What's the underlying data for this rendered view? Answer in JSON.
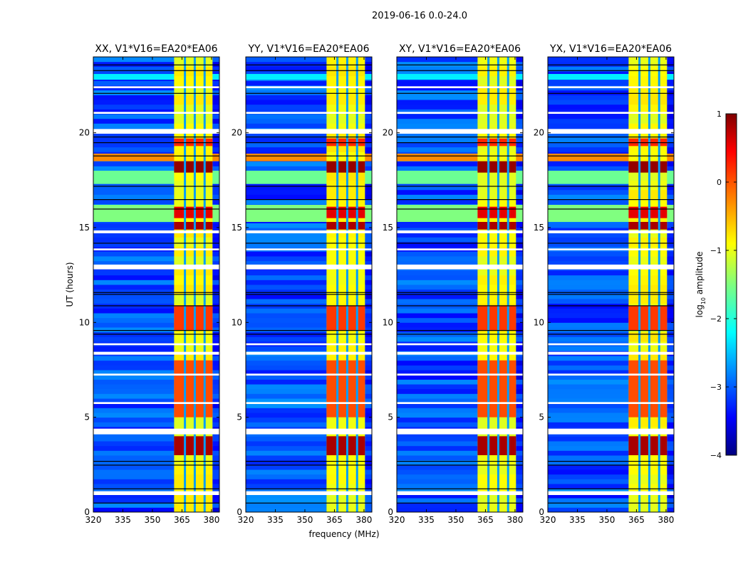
{
  "chart_data": {
    "type": "heatmap",
    "suptitle": "2019-06-16 0.0-24.0",
    "xlabel": "frequency (MHz)",
    "ylabel": "UT (hours)",
    "xlim": [
      320,
      384
    ],
    "ylim": [
      0,
      24
    ],
    "xticks": [
      320,
      335,
      350,
      365,
      380
    ],
    "yticks": [
      0,
      5,
      10,
      15,
      20
    ],
    "panels": [
      {
        "title": "XX, V1*V16=EA20*EA06"
      },
      {
        "title": "YY, V1*V16=EA20*EA06"
      },
      {
        "title": "XY, V1*V16=EA20*EA06"
      },
      {
        "title": "YX, V1*V16=EA20*EA06"
      }
    ],
    "colorbar": {
      "label": "log10 amplitude",
      "label_main": "log",
      "label_sub": "10",
      "label_rest": " amplitude",
      "range": [
        -4,
        1
      ],
      "ticks": [
        "1",
        "0",
        "−1",
        "−2",
        "−3",
        "−4"
      ],
      "colormap": "jet"
    },
    "background_level": -3.0,
    "band": {
      "freq_range": [
        361,
        380.5
      ],
      "level": -0.9,
      "channel_gaps_mhz": [
        366.5,
        371.5,
        376.5
      ]
    },
    "strong_rfi_in_band": [
      {
        "ut": [
          3.0,
          4.0
        ],
        "level": 0.8
      },
      {
        "ut": [
          14.9,
          15.3
        ],
        "level": 0.8
      },
      {
        "ut": [
          15.5,
          16.1
        ],
        "level": 0.5
      },
      {
        "ut": [
          17.9,
          18.5
        ],
        "level": 0.9
      },
      {
        "ut": [
          19.3,
          19.7
        ],
        "level": 0.2
      },
      {
        "ut": [
          9.6,
          10.9
        ],
        "level": 0.1
      },
      {
        "ut": [
          5.0,
          8.0
        ],
        "level": 0.0
      }
    ],
    "broadband_rfi": [
      {
        "ut": [
          18.5,
          18.9
        ],
        "level": -0.3
      },
      {
        "ut": [
          17.3,
          18.0
        ],
        "level": -1.6
      },
      {
        "ut": [
          15.3,
          16.2
        ],
        "level": -1.5
      },
      {
        "ut": [
          22.8,
          23.1
        ],
        "level": -2.2
      }
    ],
    "flagged_rows_ut": [
      [
        0.9,
        1.1
      ],
      [
        4.1,
        4.4
      ],
      [
        5.7,
        5.8
      ],
      [
        7.2,
        7.3
      ],
      [
        8.3,
        8.45
      ],
      [
        8.8,
        8.9
      ],
      [
        12.8,
        13.05
      ],
      [
        14.7,
        14.85
      ],
      [
        13.8,
        13.9
      ],
      [
        19.95,
        20.2
      ],
      [
        21.0,
        21.1
      ],
      [
        22.35,
        22.45
      ]
    ],
    "dark_rows_ut": [
      0.5,
      1.25,
      2.5,
      2.7,
      9.4,
      9.6,
      10.9,
      11.5,
      11.6,
      14.2,
      16.0,
      16.5,
      17.2,
      18.8,
      19.5,
      19.8,
      22.1,
      23.3,
      23.6
    ]
  }
}
